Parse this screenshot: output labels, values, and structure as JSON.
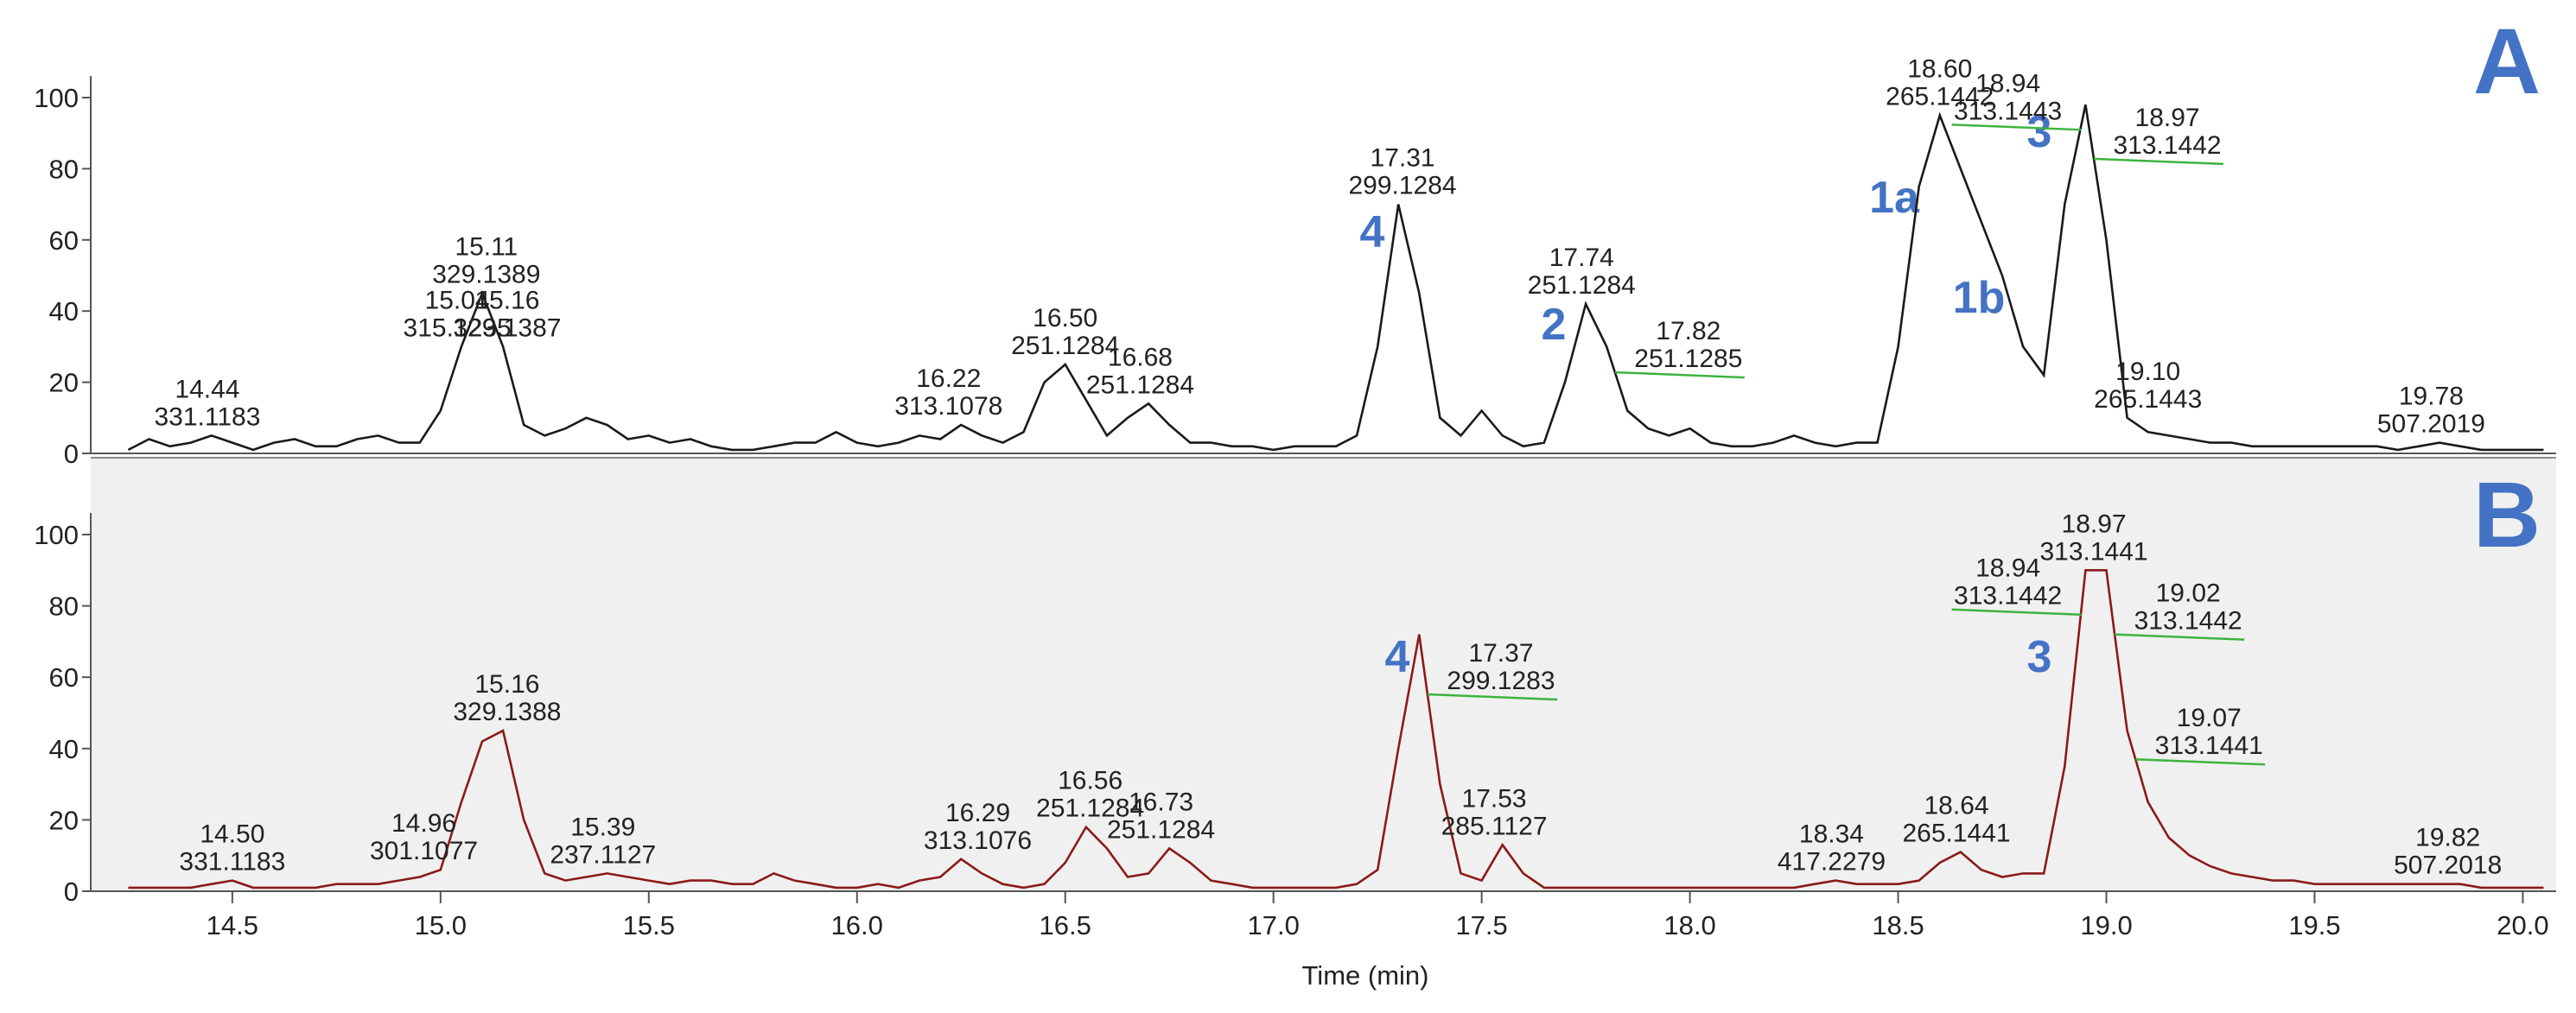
{
  "chart_data": [
    {
      "type": "line",
      "panel_label": "A",
      "color": "#1a1a1a",
      "xlim": [
        14.16,
        20.08
      ],
      "ylim": [
        0,
        100
      ],
      "yticks": [
        0,
        20,
        40,
        60,
        80,
        100
      ],
      "x": [
        14.25,
        14.3,
        14.35,
        14.4,
        14.45,
        14.5,
        14.55,
        14.6,
        14.65,
        14.7,
        14.75,
        14.8,
        14.85,
        14.9,
        14.95,
        15.0,
        15.05,
        15.1,
        15.15,
        15.2,
        15.25,
        15.3,
        15.35,
        15.4,
        15.45,
        15.5,
        15.55,
        15.6,
        15.65,
        15.7,
        15.75,
        15.8,
        15.85,
        15.9,
        15.95,
        16.0,
        16.05,
        16.1,
        16.15,
        16.2,
        16.25,
        16.3,
        16.35,
        16.4,
        16.45,
        16.5,
        16.55,
        16.6,
        16.65,
        16.7,
        16.75,
        16.8,
        16.85,
        16.9,
        16.95,
        17.0,
        17.05,
        17.1,
        17.15,
        17.2,
        17.25,
        17.3,
        17.35,
        17.4,
        17.45,
        17.5,
        17.55,
        17.6,
        17.65,
        17.7,
        17.75,
        17.8,
        17.85,
        17.9,
        17.95,
        18.0,
        18.05,
        18.1,
        18.15,
        18.2,
        18.25,
        18.3,
        18.35,
        18.4,
        18.45,
        18.5,
        18.55,
        18.6,
        18.65,
        18.7,
        18.75,
        18.8,
        18.85,
        18.9,
        18.95,
        19.0,
        19.05,
        19.1,
        19.15,
        19.2,
        19.25,
        19.3,
        19.35,
        19.4,
        19.45,
        19.5,
        19.55,
        19.6,
        19.65,
        19.7,
        19.75,
        19.8,
        19.85,
        19.9,
        19.95,
        20.0,
        20.05
      ],
      "values": [
        1,
        4,
        2,
        3,
        5,
        3,
        1,
        3,
        4,
        2,
        2,
        4,
        5,
        3,
        3,
        12,
        30,
        45,
        30,
        8,
        5,
        7,
        10,
        8,
        4,
        5,
        3,
        4,
        2,
        1,
        1,
        2,
        3,
        3,
        6,
        3,
        2,
        3,
        5,
        4,
        8,
        5,
        3,
        6,
        20,
        25,
        15,
        5,
        10,
        14,
        8,
        3,
        3,
        2,
        2,
        1,
        2,
        2,
        2,
        5,
        30,
        70,
        45,
        10,
        5,
        12,
        5,
        2,
        3,
        20,
        42,
        30,
        12,
        7,
        5,
        7,
        3,
        2,
        2,
        3,
        5,
        3,
        2,
        3,
        3,
        30,
        75,
        95,
        80,
        65,
        50,
        30,
        22,
        70,
        98,
        60,
        10,
        6,
        5,
        4,
        3,
        3,
        2,
        2,
        2,
        2,
        2,
        2,
        2,
        1,
        2,
        3,
        2,
        1,
        1,
        1,
        1
      ],
      "annotations": [
        {
          "rt": "14.44",
          "mz": "331.1183"
        },
        {
          "rt": "15.04",
          "mz": "315.1235"
        },
        {
          "rt": "15.11",
          "mz": "329.1389"
        },
        {
          "rt": "15.16",
          "mz": "329.1387"
        },
        {
          "rt": "16.22",
          "mz": "313.1078"
        },
        {
          "rt": "16.50",
          "mz": "251.1284"
        },
        {
          "rt": "16.68",
          "mz": "251.1284"
        },
        {
          "rt": "17.31",
          "mz": "299.1284"
        },
        {
          "rt": "17.74",
          "mz": "251.1284"
        },
        {
          "rt": "17.82",
          "mz": "251.1285"
        },
        {
          "rt": "18.60",
          "mz": "265.1442"
        },
        {
          "rt": "18.94",
          "mz": "313.1443"
        },
        {
          "rt": "18.97",
          "mz": "313.1442"
        },
        {
          "rt": "19.10",
          "mz": "265.1443"
        },
        {
          "rt": "19.78",
          "mz": "507.2019"
        }
      ],
      "compounds": [
        "1a",
        "1b",
        "3",
        "4",
        "2"
      ]
    },
    {
      "type": "line",
      "panel_label": "B",
      "color": "#8b1a1a",
      "xlabel": "Time (min)",
      "xlim": [
        14.16,
        20.08
      ],
      "ylim": [
        0,
        100
      ],
      "yticks": [
        0,
        20,
        40,
        60,
        80,
        100
      ],
      "xticks": [
        14.5,
        {
          "value": 15,
          "label": "15.0"
        },
        15.5,
        {
          "value": 16,
          "label": "16.0"
        },
        16.5,
        {
          "value": 17,
          "label": "17.0"
        },
        17.5,
        {
          "value": 18,
          "label": "18.0"
        },
        18.5,
        {
          "value": 19,
          "label": "19.0"
        },
        19.5,
        {
          "value": 20,
          "label": "20.0"
        }
      ],
      "x": [
        14.25,
        14.3,
        14.35,
        14.4,
        14.45,
        14.5,
        14.55,
        14.6,
        14.65,
        14.7,
        14.75,
        14.8,
        14.85,
        14.9,
        14.95,
        15.0,
        15.05,
        15.1,
        15.15,
        15.2,
        15.25,
        15.3,
        15.35,
        15.4,
        15.45,
        15.5,
        15.55,
        15.6,
        15.65,
        15.7,
        15.75,
        15.8,
        15.85,
        15.9,
        15.95,
        16.0,
        16.05,
        16.1,
        16.15,
        16.2,
        16.25,
        16.3,
        16.35,
        16.4,
        16.45,
        16.5,
        16.55,
        16.6,
        16.65,
        16.7,
        16.75,
        16.8,
        16.85,
        16.9,
        16.95,
        17.0,
        17.05,
        17.1,
        17.15,
        17.2,
        17.25,
        17.3,
        17.35,
        17.4,
        17.45,
        17.5,
        17.55,
        17.6,
        17.65,
        17.7,
        17.75,
        17.8,
        17.85,
        17.9,
        17.95,
        18.0,
        18.05,
        18.1,
        18.15,
        18.2,
        18.25,
        18.3,
        18.35,
        18.4,
        18.45,
        18.5,
        18.55,
        18.6,
        18.65,
        18.7,
        18.75,
        18.8,
        18.85,
        18.9,
        18.95,
        19.0,
        19.05,
        19.1,
        19.15,
        19.2,
        19.25,
        19.3,
        19.35,
        19.4,
        19.45,
        19.5,
        19.55,
        19.6,
        19.65,
        19.7,
        19.75,
        19.8,
        19.85,
        19.9,
        19.95,
        20.0,
        20.05
      ],
      "values": [
        1,
        1,
        1,
        1,
        2,
        3,
        1,
        1,
        1,
        1,
        2,
        2,
        2,
        3,
        4,
        6,
        25,
        42,
        45,
        20,
        5,
        3,
        4,
        5,
        4,
        3,
        2,
        3,
        3,
        2,
        2,
        5,
        3,
        2,
        1,
        1,
        2,
        1,
        3,
        4,
        9,
        5,
        2,
        1,
        2,
        8,
        18,
        12,
        4,
        5,
        12,
        8,
        3,
        2,
        1,
        1,
        1,
        1,
        1,
        2,
        6,
        40,
        72,
        30,
        5,
        3,
        13,
        5,
        1,
        1,
        1,
        1,
        1,
        1,
        1,
        1,
        1,
        1,
        1,
        1,
        1,
        2,
        3,
        2,
        2,
        2,
        3,
        8,
        11,
        6,
        4,
        5,
        5,
        35,
        90,
        90,
        45,
        25,
        15,
        10,
        7,
        5,
        4,
        3,
        3,
        2,
        2,
        2,
        2,
        2,
        2,
        2,
        2,
        1,
        1,
        1,
        1
      ],
      "annotations": [
        {
          "rt": "14.50",
          "mz": "331.1183"
        },
        {
          "rt": "14.96",
          "mz": "301.1077"
        },
        {
          "rt": "15.16",
          "mz": "329.1388"
        },
        {
          "rt": "15.39",
          "mz": "237.1127"
        },
        {
          "rt": "16.29",
          "mz": "313.1076"
        },
        {
          "rt": "16.56",
          "mz": "251.1284"
        },
        {
          "rt": "16.73",
          "mz": "251.1284"
        },
        {
          "rt": "17.37",
          "mz": "299.1283"
        },
        {
          "rt": "17.53",
          "mz": "285.1127"
        },
        {
          "rt": "18.34",
          "mz": "417.2279"
        },
        {
          "rt": "18.64",
          "mz": "265.1441"
        },
        {
          "rt": "18.94",
          "mz": "313.1442"
        },
        {
          "rt": "18.97",
          "mz": "313.1441"
        },
        {
          "rt": "19.02",
          "mz": "313.1442"
        },
        {
          "rt": "19.07",
          "mz": "313.1441"
        },
        {
          "rt": "19.82",
          "mz": "507.2018"
        }
      ],
      "compounds": [
        "4",
        "3"
      ]
    }
  ]
}
